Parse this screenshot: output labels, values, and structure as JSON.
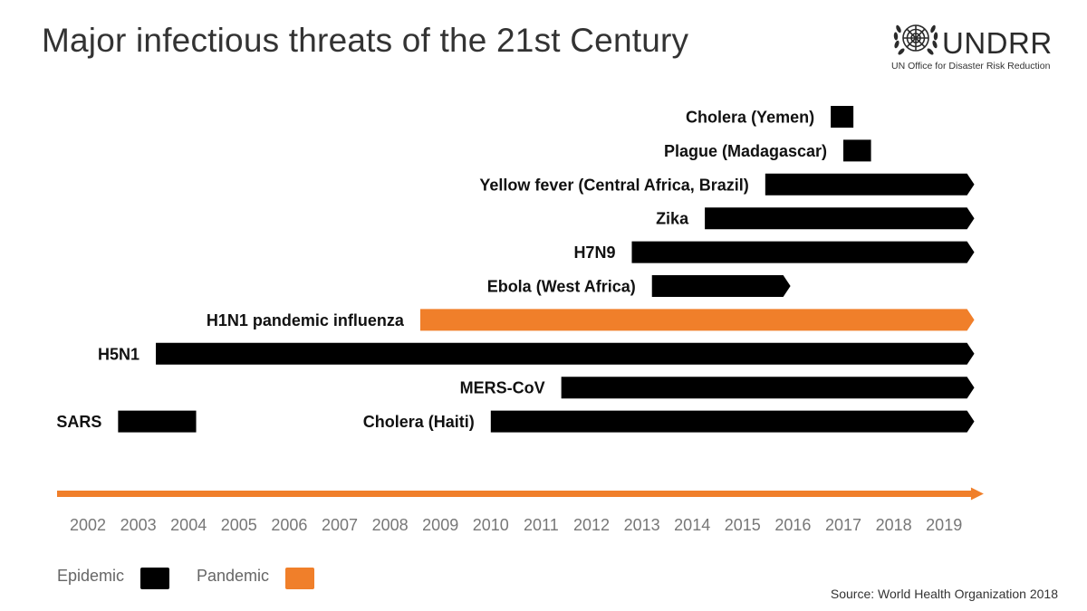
{
  "title": "Major infectious threats of the 21st Century",
  "logo": {
    "name": "UNDRR",
    "subtitle": "UN Office for Disaster Risk Reduction",
    "icon": "un-emblem-icon"
  },
  "source": "Source: World Health Organization 2018",
  "legend": [
    {
      "label": "Epidemic",
      "color": "#000000"
    },
    {
      "label": "Pandemic",
      "color": "#F07F2A"
    }
  ],
  "chart_data": {
    "type": "timeline",
    "title": "Major infectious threats of the 21st Century",
    "x_ticks": [
      "2002",
      "2003",
      "2004",
      "2005",
      "2006",
      "2007",
      "2008",
      "2009",
      "2010",
      "2011",
      "2012",
      "2013",
      "2014",
      "2015",
      "2016",
      "2017",
      "2018",
      "2019"
    ],
    "xlim": [
      2001.5,
      2019.75
    ],
    "colors": {
      "Epidemic": "#000000",
      "Pandemic": "#F07F2A",
      "axis": "#F07F2A"
    },
    "events": [
      {
        "label": "Cholera (Yemen)",
        "start": 2016.75,
        "end": 2017.2,
        "type": "Epidemic",
        "ongoing": false
      },
      {
        "label": "Plague (Madagascar)",
        "start": 2017.0,
        "end": 2017.55,
        "type": "Epidemic",
        "ongoing": false
      },
      {
        "label": "Yellow fever (Central Africa, Brazil)",
        "start": 2015.45,
        "end": 2019.6,
        "type": "Epidemic",
        "ongoing": true
      },
      {
        "label": "Zika",
        "start": 2014.25,
        "end": 2019.6,
        "type": "Epidemic",
        "ongoing": true
      },
      {
        "label": "H7N9",
        "start": 2012.8,
        "end": 2019.6,
        "type": "Epidemic",
        "ongoing": true
      },
      {
        "label": "Ebola (West Africa)",
        "start": 2013.2,
        "end": 2015.95,
        "type": "Epidemic",
        "ongoing": false
      },
      {
        "label": "H1N1 pandemic influenza",
        "start": 2008.6,
        "end": 2019.6,
        "type": "Pandemic",
        "ongoing": true
      },
      {
        "label": "H5N1",
        "start": 2003.35,
        "end": 2019.6,
        "type": "Epidemic",
        "ongoing": true
      },
      {
        "label": "MERS-CoV",
        "start": 2011.4,
        "end": 2019.6,
        "type": "Epidemic",
        "ongoing": true
      },
      {
        "label": "SARS",
        "start": 2002.6,
        "end": 2004.15,
        "type": "Epidemic",
        "ongoing": false
      },
      {
        "label": "Cholera (Haiti)",
        "start": 2010.0,
        "end": 2019.6,
        "type": "Epidemic",
        "ongoing": true
      }
    ]
  }
}
